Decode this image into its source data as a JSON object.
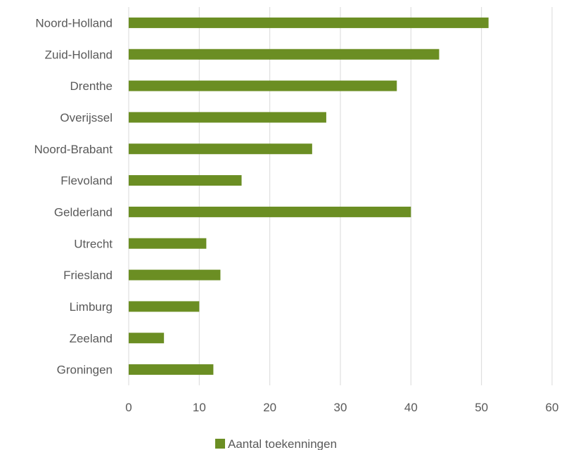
{
  "chart_data": {
    "type": "bar",
    "orientation": "horizontal",
    "title": "",
    "xlabel": "",
    "ylabel": "",
    "categories": [
      "Noord-Holland",
      "Zuid-Holland",
      "Drenthe",
      "Overijssel",
      "Noord-Brabant",
      "Flevoland",
      "Gelderland",
      "Utrecht",
      "Friesland",
      "Limburg",
      "Zeeland",
      "Groningen"
    ],
    "series": [
      {
        "name": "Aantal toekenningen",
        "color": "#6b8e23",
        "values": [
          51,
          44,
          38,
          28,
          26,
          16,
          40,
          11,
          13,
          10,
          5,
          12
        ]
      }
    ],
    "xlim": [
      0,
      60
    ],
    "xticks": [
      "0",
      "10",
      "20",
      "30",
      "40",
      "50",
      "60"
    ],
    "grid": "vertical",
    "legend": "bottom"
  }
}
